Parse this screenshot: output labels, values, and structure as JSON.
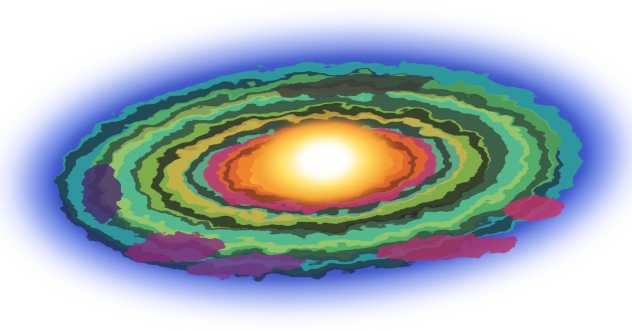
{
  "image": {
    "subject": "spiral-galaxy-painting",
    "colors": {
      "background": "#ffffff",
      "halo": "#3f5fd8",
      "outer_glow": "#8fa6ff",
      "core": "#fffbe6",
      "inner_yellow": "#ffd84a",
      "orange": "#f08a2a",
      "magenta": "#c8326a",
      "green": "#7fc244",
      "teal": "#2fb3a0",
      "dark_dust": "#2a2a2a",
      "purple": "#7a3a8c"
    }
  }
}
